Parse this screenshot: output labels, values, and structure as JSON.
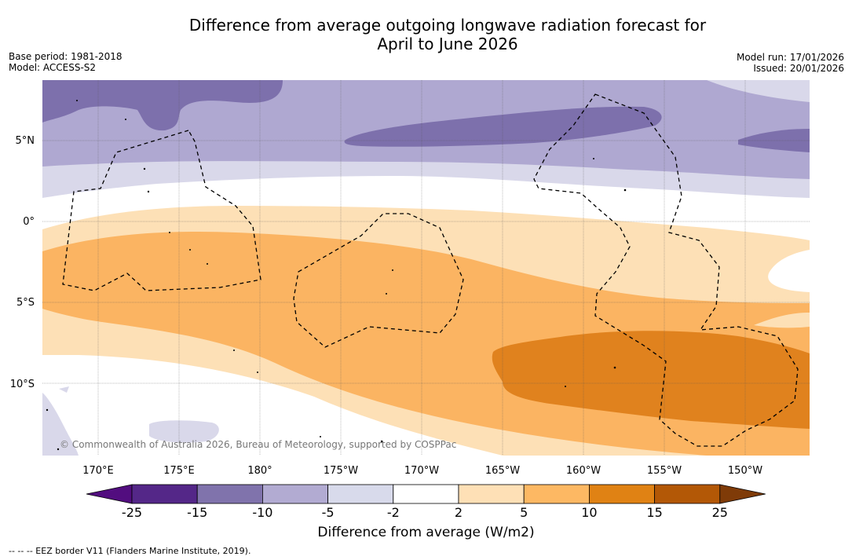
{
  "title": {
    "line1": "Difference from average outgoing longwave radiation forecast for",
    "line2": "April to June 2026"
  },
  "meta": {
    "base_period": "Base period: 1981-2018",
    "model": "Model: ACCESS-S2",
    "model_run": "Model run: 17/01/2026",
    "issued": "Issued: 20/01/2026"
  },
  "map": {
    "lat_labels": [
      "5°N",
      "0°",
      "5°S",
      "10°S"
    ],
    "lon_labels": [
      "170°E",
      "175°E",
      "180°",
      "175°W",
      "170°W",
      "165°W",
      "160°W",
      "155°W",
      "150°W"
    ],
    "copyright": "© Commonwealth of Australia 2026, Bureau of Meteorology, supported by COSPPac",
    "colors": {
      "p_strong": "#7d70ac",
      "p_mid": "#afa8d1",
      "p_light": "#d9d8ea",
      "neutral": "#ffffff",
      "o_light": "#fde0b6",
      "o_mid": "#fbb462",
      "o_strong": "#e0821e"
    }
  },
  "colorbar": {
    "tick_labels": [
      "-25",
      "-15",
      "-10",
      "-5",
      "-2",
      "2",
      "5",
      "10",
      "15",
      "25"
    ],
    "colors": [
      "#520d7f",
      "#542788",
      "#8073ac",
      "#b2abd2",
      "#d8daeb",
      "#ffffff",
      "#fee0b6",
      "#fdb863",
      "#e08214",
      "#b35806",
      "#7f3b08"
    ],
    "label": "Difference from average (W/m2)"
  },
  "footnote": "--  --  -- EEZ border V11 (Flanders Marine Institute, 2019)."
}
